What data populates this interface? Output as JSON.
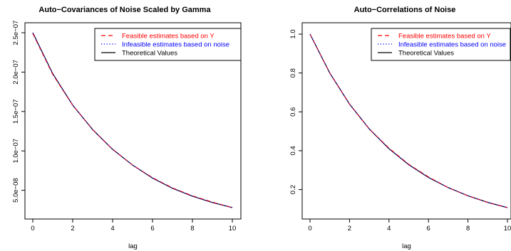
{
  "chart_data": [
    {
      "type": "line",
      "title": "Auto−Covariances of Noise Scaled by Gamma",
      "xlabel": "lag",
      "ylabel": "",
      "xlim": [
        0,
        10
      ],
      "ylim": [
        2.8e-08,
        2.5e-07
      ],
      "x_ticks": [
        0,
        2,
        4,
        6,
        8,
        10
      ],
      "x_tick_labels": [
        "0",
        "2",
        "4",
        "6",
        "8",
        "10"
      ],
      "y_ticks": [
        5e-08,
        1e-07,
        1.5e-07,
        2e-07,
        2.5e-07
      ],
      "y_tick_labels": [
        "5.0e−08",
        "1.0e−07",
        "1.5e−07",
        "2.0e−07",
        "2.5e−07"
      ],
      "grid": false,
      "legend_position": "top-right",
      "x": [
        0,
        1,
        2,
        3,
        4,
        5,
        6,
        7,
        8,
        9,
        10
      ],
      "series": [
        {
          "name": "Feasible estimates based on Y",
          "color": "#ff0000",
          "style": "dashed",
          "values": [
            2.49e-07,
            1.97e-07,
            1.58e-07,
            1.27e-07,
            1.02e-07,
            8.2e-08,
            6.6e-08,
            5.3e-08,
            4.3e-08,
            3.5e-08,
            2.8e-08
          ]
        },
        {
          "name": "Infeasible estimates based on noise",
          "color": "#0000ff",
          "style": "dotted",
          "values": [
            2.5e-07,
            1.98e-07,
            1.585e-07,
            1.272e-07,
            1.02e-07,
            8.2e-08,
            6.55e-08,
            5.27e-08,
            4.25e-08,
            3.45e-08,
            2.8e-08
          ]
        },
        {
          "name": "Theoretical Values",
          "color": "#000000",
          "style": "solid",
          "values": [
            2.5e-07,
            1.98e-07,
            1.58e-07,
            1.27e-07,
            1.02e-07,
            8.2e-08,
            6.55e-08,
            5.25e-08,
            4.25e-08,
            3.45e-08,
            2.8e-08
          ]
        }
      ]
    },
    {
      "type": "line",
      "title": "Auto−Correlations of Noise",
      "xlabel": "lag",
      "ylabel": "",
      "xlim": [
        0,
        10
      ],
      "ylim": [
        0.107,
        1.0
      ],
      "x_ticks": [
        0,
        2,
        4,
        6,
        8,
        10
      ],
      "x_tick_labels": [
        "0",
        "2",
        "4",
        "6",
        "8",
        "10"
      ],
      "y_ticks": [
        0.2,
        0.4,
        0.6,
        0.8,
        1.0
      ],
      "y_tick_labels": [
        "0.2",
        "0.4",
        "0.6",
        "0.8",
        "1.0"
      ],
      "grid": false,
      "legend_position": "top-right",
      "x": [
        0,
        1,
        2,
        3,
        4,
        5,
        6,
        7,
        8,
        9,
        10
      ],
      "series": [
        {
          "name": "Feasible estimates based on Y",
          "color": "#ff0000",
          "style": "dashed",
          "values": [
            1.0,
            0.8,
            0.64,
            0.512,
            0.413,
            0.33,
            0.265,
            0.21,
            0.168,
            0.134,
            0.107
          ]
        },
        {
          "name": "Infeasible estimates based on noise",
          "color": "#0000ff",
          "style": "dotted",
          "values": [
            1.0,
            0.8,
            0.64,
            0.512,
            0.41,
            0.328,
            0.262,
            0.21,
            0.168,
            0.134,
            0.107
          ]
        },
        {
          "name": "Theoretical Values",
          "color": "#000000",
          "style": "solid",
          "values": [
            1.0,
            0.8,
            0.64,
            0.512,
            0.41,
            0.328,
            0.262,
            0.21,
            0.168,
            0.134,
            0.107
          ]
        }
      ]
    }
  ]
}
